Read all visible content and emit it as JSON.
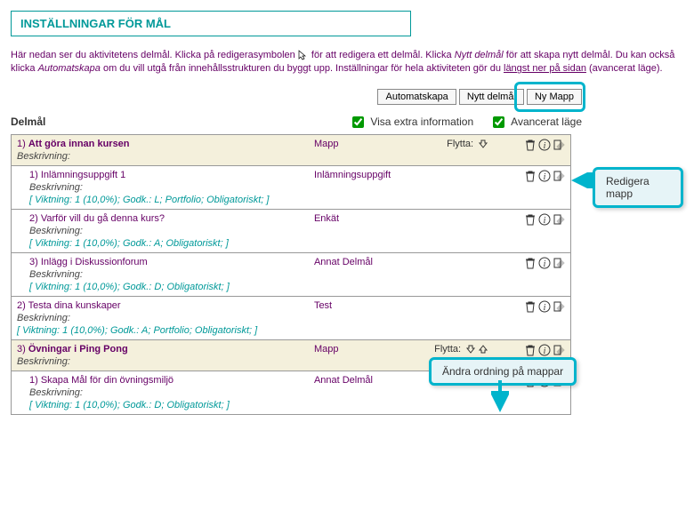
{
  "page_title": "INSTÄLLNINGAR FÖR MÅL",
  "intro": {
    "part1": "Här nedan ser du aktivitetens delmål. Klicka på redigerasymbolen ",
    "part2": " för att redigera ett delmål. Klicka ",
    "italic1": "Nytt delmål",
    "part3": " för att skapa nytt delmål. Du kan också klicka ",
    "italic2": "Automatskapa",
    "part4": " om du vill utgå från innehållsstrukturen du byggt upp. Inställningar för hela aktiviteten gör du ",
    "link": "längst ner på sidan",
    "part5": " (avancerat läge)."
  },
  "buttons": {
    "autoskapa": "Automatskapa",
    "nytt": "Nytt delmål",
    "nymapp": "Ny Mapp"
  },
  "section_heading": "Delmål",
  "checks": {
    "extra": "Visa extra information",
    "advanced": "Avancerat läge"
  },
  "move_label": "Flytta:",
  "desc_label": "Beskrivning:",
  "annotations": {
    "edit_folder": "Redigera mapp",
    "reorder": "Ändra ordning på mappar"
  },
  "rows": [
    {
      "kind": "folder",
      "num": "1)",
      "title": "Att göra innan kursen",
      "type": "Mapp",
      "move": "down",
      "detail": ""
    },
    {
      "kind": "item",
      "num": "1)",
      "title": "Inlämningsuppgift 1",
      "type": "Inlämningsuppgift",
      "detail": "[ Viktning: 1 (10,0%); Godk.: L; Portfolio; Obligatoriskt; ]"
    },
    {
      "kind": "item",
      "num": "2)",
      "title": "Varför vill du gå denna kurs?",
      "type": "Enkät",
      "detail": "[ Viktning: 1 (10,0%); Godk.: A; Obligatoriskt; ]"
    },
    {
      "kind": "item",
      "num": "3)",
      "title": "Inlägg i Diskussionforum",
      "type": "Annat Delmål",
      "detail": "[ Viktning: 1 (10,0%); Godk.: D; Obligatoriskt; ]"
    },
    {
      "kind": "item",
      "num": "2)",
      "title": "Testa dina kunskaper",
      "type": "Test",
      "indent": false,
      "detail": "[ Viktning: 1 (10,0%); Godk.: A; Portfolio; Obligatoriskt; ]"
    },
    {
      "kind": "folder",
      "num": "3)",
      "title": "Övningar i Ping Pong",
      "type": "Mapp",
      "move": "both",
      "detail": ""
    },
    {
      "kind": "item",
      "num": "1)",
      "title": "Skapa Mål för din övningsmiljö",
      "type": "Annat Delmål",
      "detail": "[ Viktning: 1 (10,0%); Godk.: D; Obligatoriskt; ]"
    }
  ]
}
